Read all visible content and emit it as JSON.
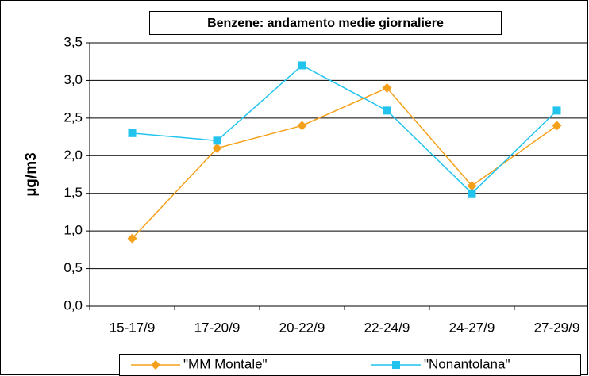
{
  "chart_data": {
    "type": "line",
    "title": "Benzene: andamento medie giornaliere",
    "y_label": "µg/m3",
    "categories": [
      "15-17/9",
      "17-20/9",
      "20-22/9",
      "22-24/9",
      "24-27/9",
      "27-29/9"
    ],
    "series": [
      {
        "name": "\"MM Montale\"",
        "color": "#f5a01a",
        "values": [
          0.9,
          2.1,
          2.4,
          2.9,
          1.6,
          2.4
        ]
      },
      {
        "name": "\"Nonantolana\"",
        "color": "#22c4ee",
        "values": [
          2.3,
          2.2,
          3.2,
          2.6,
          1.5,
          2.6
        ]
      }
    ],
    "ylim": [
      0,
      3.5
    ],
    "yticks": [
      {
        "value": 0,
        "label": "0,0"
      },
      {
        "value": 0.5,
        "label": "0,5"
      },
      {
        "value": 1,
        "label": "1,0"
      },
      {
        "value": 1.5,
        "label": "1,5"
      },
      {
        "value": 2,
        "label": "2,0"
      },
      {
        "value": 2.5,
        "label": "2,5"
      },
      {
        "value": 3,
        "label": "3,0"
      },
      {
        "value": 3.5,
        "label": "3,5"
      }
    ],
    "grid": true,
    "legend": "bottom"
  }
}
